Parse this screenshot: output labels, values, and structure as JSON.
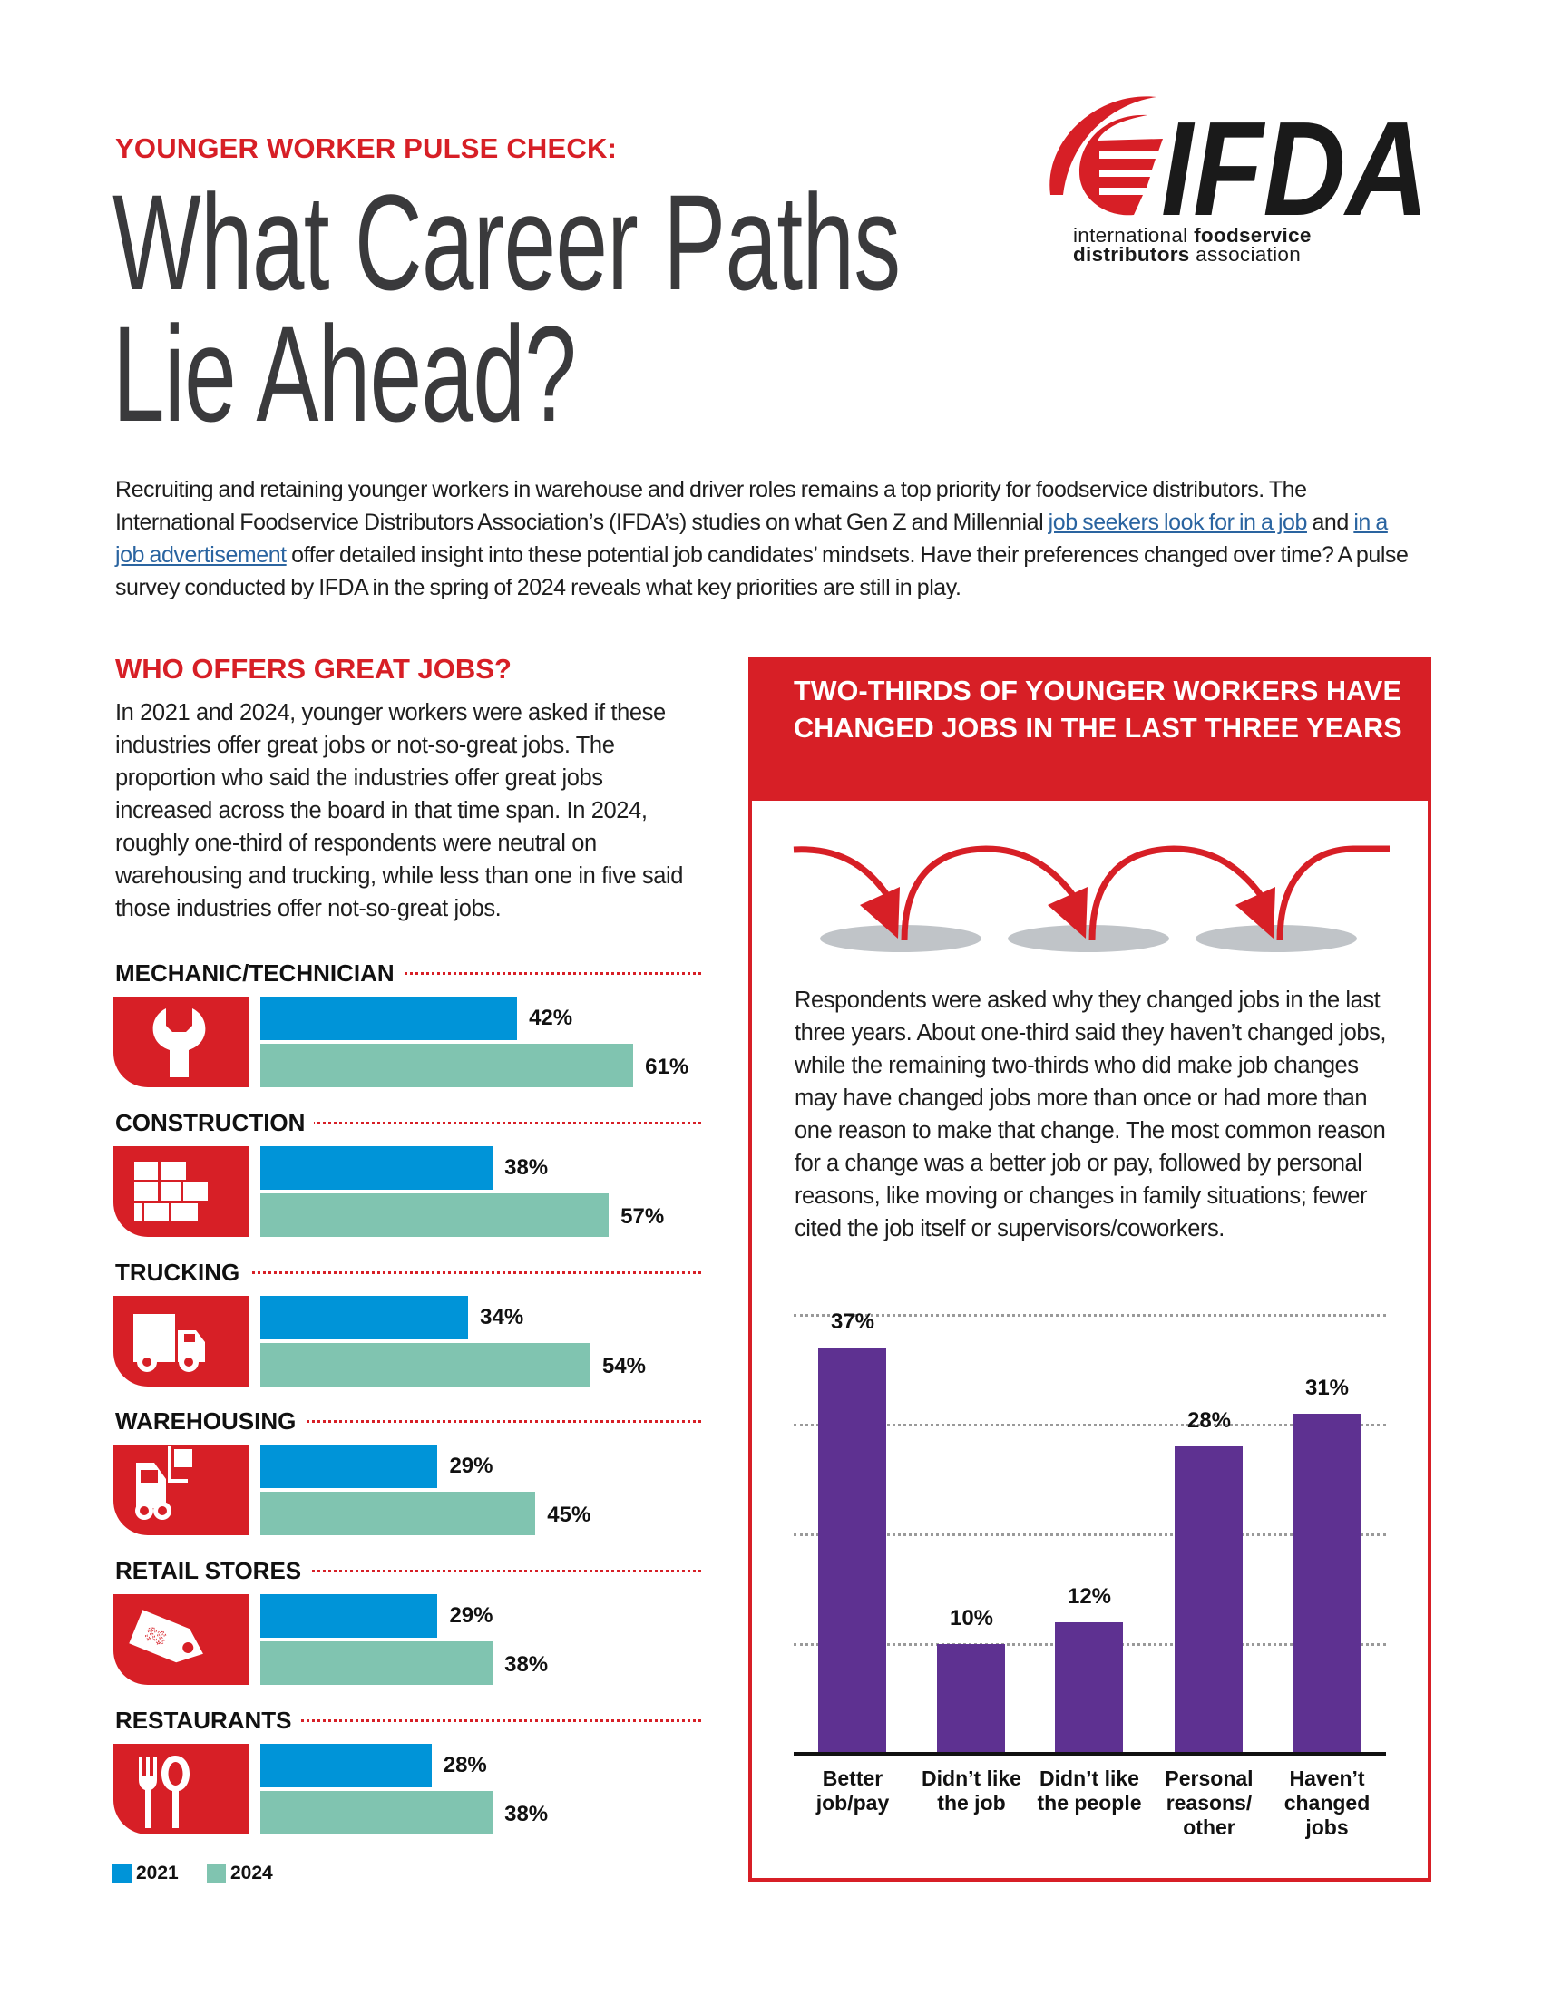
{
  "header": {
    "kicker": "YOUNGER WORKER PULSE CHECK:",
    "title_line1": "What Career Paths",
    "title_line2": "Lie Ahead?"
  },
  "logo": {
    "letters": "IFDA",
    "line1_regular": "international",
    "line1_bold": "foodservice",
    "line2_bold": "distributors",
    "line2_regular": "association"
  },
  "intro": {
    "text_1": "Recruiting and retaining younger workers in warehouse and driver roles remains a top priority for foodservice distributors. The International Foodservice Distributors Association’s (IFDA’s) studies on what Gen Z and Millennial ",
    "link_1": "job seekers look for in a job",
    "text_2": " and ",
    "link_2": "in a job advertisement",
    "text_3": " offer detailed insight into these potential job candidates’ mindsets. Have their preferences changed over time? A pulse survey conducted by IFDA in the spring of 2024 reveals what key priorities are still in play."
  },
  "left_section": {
    "heading": "WHO OFFERS GREAT JOBS?",
    "paragraph": "In 2021 and 2024, younger workers were asked if these industries offer great jobs or not-so-great jobs. The proportion who said the industries offer great jobs increased across the board in that time span. In 2024, roughly one-third of respondents were neutral on warehousing and trucking, while less than one in five said those industries offer not-so-great jobs.",
    "legend": [
      {
        "label": "2021",
        "color": "#0094d8"
      },
      {
        "label": "2024",
        "color": "#80c4b0"
      }
    ],
    "categories": [
      {
        "label": "MECHANIC/TECHNICIAN",
        "icon": "wrench-icon",
        "v2021": "42%",
        "v2024": "61%"
      },
      {
        "label": "CONSTRUCTION",
        "icon": "bricks-icon",
        "v2021": "38%",
        "v2024": "57%"
      },
      {
        "label": "TRUCKING",
        "icon": "truck-icon",
        "v2021": "34%",
        "v2024": "54%"
      },
      {
        "label": "WAREHOUSING",
        "icon": "forklift-icon",
        "v2021": "29%",
        "v2024": "45%"
      },
      {
        "label": "RETAIL STORES",
        "icon": "price-tag-icon",
        "v2021": "29%",
        "v2024": "38%"
      },
      {
        "label": "RESTAURANTS",
        "icon": "fork-spoon-icon",
        "v2021": "28%",
        "v2024": "38%"
      }
    ]
  },
  "right_section": {
    "panel_title": "TWO-THIRDS OF YOUNGER WORKERS HAVE CHANGED JOBS IN THE LAST THREE YEARS",
    "illustration": "job-hopping-arrows-icon",
    "paragraph": "Respondents were asked why they changed jobs in the last three years. About one-third said they haven’t changed jobs, while the remaining two-thirds who did make job changes may have changed jobs more than once or had more than one reason to make that change. The most common reason for a change was a better job or pay, followed by personal reasons, like moving or changes in family situations; fewer cited the job itself or supervisors/coworkers.",
    "bars": [
      {
        "value": "37%",
        "label_lines": [
          "Better",
          "job/pay"
        ]
      },
      {
        "value": "10%",
        "label_lines": [
          "Didn’t like",
          "the job"
        ]
      },
      {
        "value": "12%",
        "label_lines": [
          "Didn’t like",
          "the people"
        ]
      },
      {
        "value": "28%",
        "label_lines": [
          "Personal",
          "reasons/",
          "other"
        ]
      },
      {
        "value": "31%",
        "label_lines": [
          "Haven’t",
          "changed",
          "jobs"
        ]
      }
    ]
  },
  "colors": {
    "brand_red": "#d71f26",
    "bar_2021": "#0094d8",
    "bar_2024": "#80c4b0",
    "reason_bar": "#5e3191",
    "link": "#2a64a0"
  },
  "chart_data": [
    {
      "type": "bar",
      "title": "WHO OFFERS GREAT JOBS?",
      "orientation": "horizontal",
      "categories": [
        "MECHANIC/TECHNICIAN",
        "CONSTRUCTION",
        "TRUCKING",
        "WAREHOUSING",
        "RETAIL STORES",
        "RESTAURANTS"
      ],
      "series": [
        {
          "name": "2021",
          "values": [
            42,
            38,
            34,
            29,
            29,
            28
          ]
        },
        {
          "name": "2024",
          "values": [
            61,
            57,
            54,
            45,
            38,
            38
          ]
        }
      ],
      "xlabel": "",
      "ylabel": "",
      "value_format": "percent",
      "legend_position": "bottom-left",
      "grid": false
    },
    {
      "type": "bar",
      "title": "TWO-THIRDS OF YOUNGER WORKERS HAVE CHANGED JOBS IN THE LAST THREE YEARS",
      "orientation": "vertical",
      "categories": [
        "Better job/pay",
        "Didn’t like the job",
        "Didn’t like the people",
        "Personal reasons/other",
        "Haven’t changed jobs"
      ],
      "values": [
        37,
        10,
        12,
        28,
        31
      ],
      "xlabel": "",
      "ylabel": "",
      "ylim": [
        0,
        40
      ],
      "grid": true,
      "gridlines": [
        10,
        20,
        30,
        40
      ],
      "value_format": "percent"
    }
  ]
}
